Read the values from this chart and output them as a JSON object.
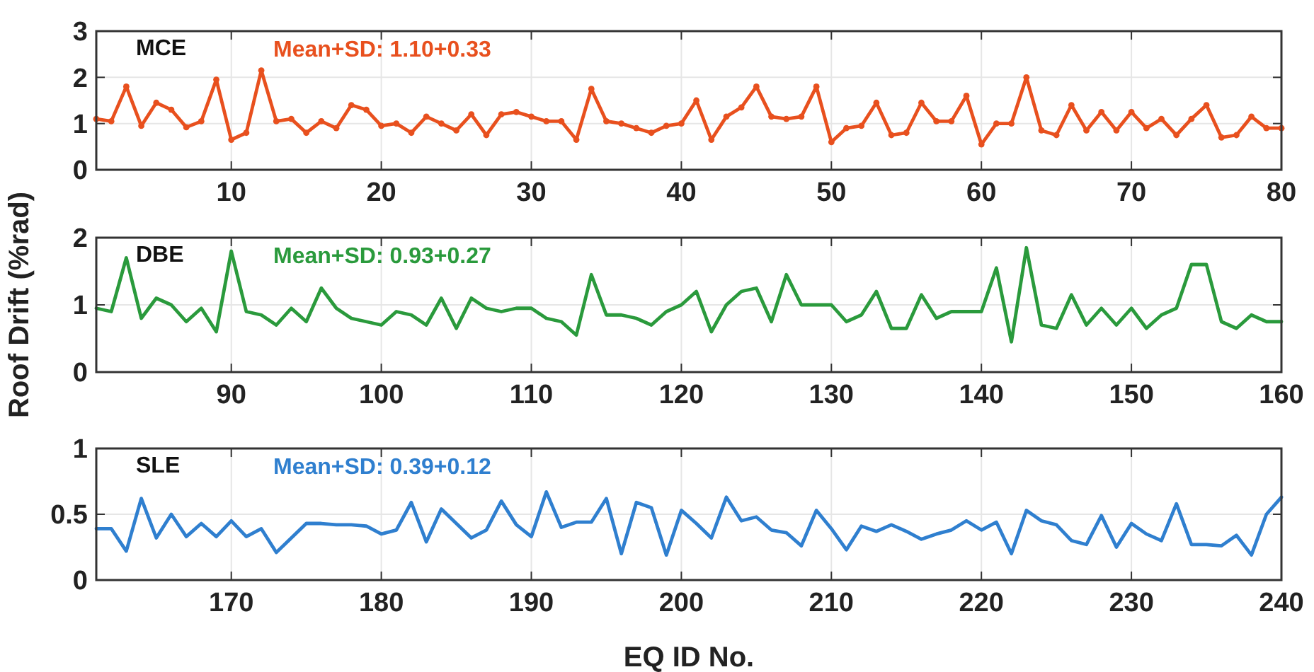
{
  "chart_data": [
    {
      "type": "line",
      "title": "MCE",
      "annotations": [
        "Mean+SD: 1.10+0.33"
      ],
      "grid": true,
      "marker": "circle",
      "line_style": "solid",
      "xlim": [
        1,
        80
      ],
      "xticks": [
        10,
        20,
        30,
        40,
        50,
        60,
        70,
        80
      ],
      "ylim": [
        0,
        3
      ],
      "yticks": [
        0,
        1,
        2,
        3
      ],
      "x": [
        1,
        2,
        3,
        4,
        5,
        6,
        7,
        8,
        9,
        10,
        11,
        12,
        13,
        14,
        15,
        16,
        17,
        18,
        19,
        20,
        21,
        22,
        23,
        24,
        25,
        26,
        27,
        28,
        29,
        30,
        31,
        32,
        33,
        34,
        35,
        36,
        37,
        38,
        39,
        40,
        41,
        42,
        43,
        44,
        45,
        46,
        47,
        48,
        49,
        50,
        51,
        52,
        53,
        54,
        55,
        56,
        57,
        58,
        59,
        60,
        61,
        62,
        63,
        64,
        65,
        66,
        67,
        68,
        69,
        70,
        71,
        72,
        73,
        74,
        75,
        76,
        77,
        78,
        79,
        80
      ],
      "series": [
        {
          "color": "#e8501e",
          "values": [
            1.1,
            1.05,
            1.8,
            0.95,
            1.45,
            1.3,
            0.92,
            1.05,
            1.95,
            0.65,
            0.8,
            2.15,
            1.05,
            1.1,
            0.8,
            1.05,
            0.9,
            1.4,
            1.3,
            0.95,
            1.0,
            0.8,
            1.15,
            1.0,
            0.85,
            1.2,
            0.75,
            1.2,
            1.25,
            1.15,
            1.05,
            1.05,
            0.65,
            1.75,
            1.05,
            1.0,
            0.9,
            0.8,
            0.95,
            1.0,
            1.5,
            0.65,
            1.15,
            1.35,
            1.8,
            1.15,
            1.1,
            1.15,
            1.8,
            0.6,
            0.9,
            0.95,
            1.45,
            0.75,
            0.8,
            1.45,
            1.05,
            1.05,
            1.6,
            0.55,
            1.0,
            1.0,
            2.0,
            0.85,
            0.75,
            1.4,
            0.85,
            1.25,
            0.85,
            1.25,
            0.9,
            1.1,
            0.75,
            1.1,
            1.4,
            0.7,
            0.75,
            1.15,
            0.9,
            0.9
          ]
        }
      ]
    },
    {
      "type": "line",
      "title": "DBE",
      "annotations": [
        "Mean+SD: 0.93+0.27"
      ],
      "ylabel": "Roof Drift (%rad)",
      "grid": true,
      "line_style": "solid",
      "xlim": [
        81,
        160
      ],
      "xticks": [
        90,
        100,
        110,
        120,
        130,
        140,
        150,
        160
      ],
      "ylim": [
        0,
        2
      ],
      "yticks": [
        0,
        1,
        2
      ],
      "x": [
        81,
        82,
        83,
        84,
        85,
        86,
        87,
        88,
        89,
        90,
        91,
        92,
        93,
        94,
        95,
        96,
        97,
        98,
        99,
        100,
        101,
        102,
        103,
        104,
        105,
        106,
        107,
        108,
        109,
        110,
        111,
        112,
        113,
        114,
        115,
        116,
        117,
        118,
        119,
        120,
        121,
        122,
        123,
        124,
        125,
        126,
        127,
        128,
        129,
        130,
        131,
        132,
        133,
        134,
        135,
        136,
        137,
        138,
        139,
        140,
        141,
        142,
        143,
        144,
        145,
        146,
        147,
        148,
        149,
        150,
        151,
        152,
        153,
        154,
        155,
        156,
        157,
        158,
        159,
        160
      ],
      "series": [
        {
          "color": "#2a9a3c",
          "values": [
            0.95,
            0.9,
            1.7,
            0.8,
            1.1,
            1.0,
            0.75,
            0.95,
            0.6,
            1.8,
            0.9,
            0.85,
            0.7,
            0.95,
            0.75,
            1.25,
            0.95,
            0.8,
            0.75,
            0.7,
            0.9,
            0.85,
            0.7,
            1.1,
            0.65,
            1.1,
            0.95,
            0.9,
            0.95,
            0.95,
            0.8,
            0.75,
            0.55,
            1.45,
            0.85,
            0.85,
            0.8,
            0.7,
            0.9,
            1.0,
            1.2,
            0.6,
            1.0,
            1.2,
            1.25,
            0.75,
            1.45,
            1.0,
            1.0,
            1.0,
            0.75,
            0.85,
            1.2,
            0.65,
            0.65,
            1.15,
            0.8,
            0.9,
            0.9,
            0.9,
            1.55,
            0.45,
            1.85,
            0.7,
            0.65,
            1.15,
            0.7,
            0.95,
            0.7,
            0.95,
            0.65,
            0.85,
            0.95,
            1.6,
            1.6,
            0.75,
            0.65,
            0.85,
            0.75,
            0.75
          ]
        }
      ]
    },
    {
      "type": "line",
      "title": "SLE",
      "annotations": [
        "Mean+SD: 0.39+0.12"
      ],
      "xlabel": "EQ ID No.",
      "grid": true,
      "line_style": "solid",
      "xlim": [
        161,
        240
      ],
      "xticks": [
        170,
        180,
        190,
        200,
        210,
        220,
        230,
        240
      ],
      "ylim": [
        0,
        1
      ],
      "yticks": [
        0,
        0.5,
        1
      ],
      "x": [
        161,
        162,
        163,
        164,
        165,
        166,
        167,
        168,
        169,
        170,
        171,
        172,
        173,
        174,
        175,
        176,
        177,
        178,
        179,
        180,
        181,
        182,
        183,
        184,
        185,
        186,
        187,
        188,
        189,
        190,
        191,
        192,
        193,
        194,
        195,
        196,
        197,
        198,
        199,
        200,
        201,
        202,
        203,
        204,
        205,
        206,
        207,
        208,
        209,
        210,
        211,
        212,
        213,
        214,
        215,
        216,
        217,
        218,
        219,
        220,
        221,
        222,
        223,
        224,
        225,
        226,
        227,
        228,
        229,
        230,
        231,
        232,
        233,
        234,
        235,
        236,
        237,
        238,
        239,
        240
      ],
      "series": [
        {
          "color": "#2f7fcf",
          "values": [
            0.39,
            0.39,
            0.22,
            0.62,
            0.32,
            0.5,
            0.33,
            0.43,
            0.33,
            0.45,
            0.33,
            0.39,
            0.21,
            0.32,
            0.43,
            0.43,
            0.42,
            0.42,
            0.41,
            0.35,
            0.38,
            0.59,
            0.29,
            0.54,
            0.43,
            0.32,
            0.38,
            0.6,
            0.42,
            0.33,
            0.67,
            0.4,
            0.44,
            0.44,
            0.62,
            0.2,
            0.59,
            0.55,
            0.19,
            0.53,
            0.43,
            0.32,
            0.63,
            0.45,
            0.48,
            0.38,
            0.36,
            0.26,
            0.53,
            0.39,
            0.23,
            0.41,
            0.37,
            0.42,
            0.37,
            0.31,
            0.35,
            0.38,
            0.45,
            0.38,
            0.44,
            0.2,
            0.53,
            0.45,
            0.42,
            0.3,
            0.27,
            0.49,
            0.25,
            0.43,
            0.35,
            0.3,
            0.58,
            0.27,
            0.27,
            0.26,
            0.34,
            0.19,
            0.5,
            0.63
          ]
        }
      ]
    }
  ]
}
